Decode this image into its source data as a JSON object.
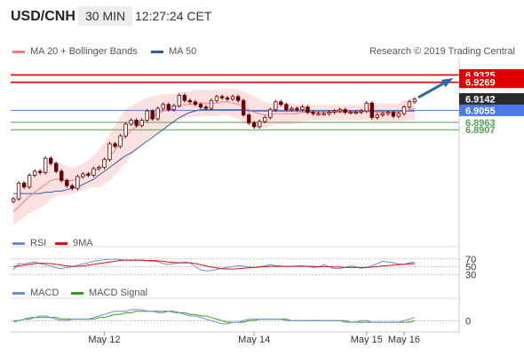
{
  "header": {
    "pair": "USD/CNH",
    "timeframe": "30 MIN",
    "time": "12:27:24 CET"
  },
  "research": "Research © 2019 Trading Central",
  "legend_main": [
    {
      "label": "MA 20 + Bollinger Bands",
      "color": "#f08080"
    },
    {
      "label": "MA 50",
      "color": "#2f5f9a"
    }
  ],
  "legend_rsi": [
    {
      "label": "RSI",
      "color": "#6a8ed8"
    },
    {
      "label": "9MA",
      "color": "#e01010"
    }
  ],
  "legend_macd": [
    {
      "label": "MACD",
      "color": "#6a8ed8"
    },
    {
      "label": "MACD Signal",
      "color": "#3a9a1a"
    }
  ],
  "colors": {
    "resistance": "#e00000",
    "pivot": "#4a7be8",
    "support": "#55a055",
    "current": "#2b2b2b",
    "bollinger_fill": "#fde0e0",
    "candle": "#6b0000",
    "arrow": "#2d67b0"
  },
  "chart_data": {
    "type": "line",
    "x_labels": [
      "May 12",
      "May 14",
      "May 15",
      "May 16"
    ],
    "price": {
      "ylim": [
        6.815,
        6.945
      ],
      "close": [
        6.838,
        6.85,
        6.847,
        6.856,
        6.859,
        6.858,
        6.869,
        6.865,
        6.859,
        6.852,
        6.848,
        6.846,
        6.855,
        6.857,
        6.856,
        6.861,
        6.862,
        6.868,
        6.88,
        6.878,
        6.886,
        6.895,
        6.898,
        6.894,
        6.898,
        6.905,
        6.899,
        6.907,
        6.91,
        6.906,
        6.909,
        6.917,
        6.913,
        6.912,
        6.91,
        6.908,
        6.907,
        6.913,
        6.916,
        6.915,
        6.914,
        6.916,
        6.913,
        6.902,
        6.896,
        6.893,
        6.897,
        6.9,
        6.906,
        6.912,
        6.91,
        6.906,
        6.907,
        6.906,
        6.908,
        6.904,
        6.903,
        6.903,
        6.903,
        6.904,
        6.905,
        6.906,
        6.904,
        6.904,
        6.904,
        6.905,
        6.911,
        6.9,
        6.902,
        6.903,
        6.904,
        6.901,
        6.903,
        6.908,
        6.912,
        6.914
      ],
      "ma20": [
        6.828,
        6.832,
        6.836,
        6.84,
        6.843,
        6.846,
        6.849,
        6.852,
        6.853,
        6.853,
        6.852,
        6.852,
        6.853,
        6.855,
        6.857,
        6.859,
        6.861,
        6.865,
        6.87,
        6.875,
        6.881,
        6.886,
        6.89,
        6.893,
        6.896,
        6.899,
        6.901,
        6.903,
        6.905,
        6.906,
        6.907,
        6.909,
        6.91,
        6.91,
        6.911,
        6.911,
        6.911,
        6.911,
        6.911,
        6.912,
        6.912,
        6.911,
        6.91,
        6.908,
        6.906,
        6.904,
        6.903,
        6.902,
        6.902,
        6.903,
        6.903,
        6.903,
        6.903,
        6.903,
        6.904,
        6.904,
        6.904,
        6.904,
        6.904,
        6.904,
        6.904,
        6.904,
        6.904,
        6.904,
        6.904,
        6.904,
        6.905,
        6.904,
        6.904,
        6.904,
        6.904,
        6.904,
        6.904,
        6.905,
        6.906,
        6.907
      ],
      "ma50": [
        6.842,
        6.842,
        6.842,
        6.842,
        6.842,
        6.842,
        6.843,
        6.843,
        6.844,
        6.844,
        6.845,
        6.846,
        6.847,
        6.849,
        6.851,
        6.853,
        6.856,
        6.859,
        6.862,
        6.865,
        6.868,
        6.871,
        6.873,
        6.876,
        6.879,
        6.882,
        6.885,
        6.888,
        6.891,
        6.894,
        6.897,
        6.9,
        6.902,
        6.904,
        6.905,
        6.906,
        6.906,
        6.906,
        6.906,
        6.906,
        6.906,
        6.906,
        6.906,
        6.906,
        6.905,
        6.905,
        6.905,
        6.905,
        6.905,
        6.905,
        6.905,
        6.905,
        6.905,
        6.905,
        6.905,
        6.905,
        6.905,
        6.905,
        6.905,
        6.905,
        6.905,
        6.905,
        6.905,
        6.905,
        6.905,
        6.905,
        6.905,
        6.905,
        6.905,
        6.905,
        6.905,
        6.905,
        6.905,
        6.905,
        6.905,
        6.905
      ],
      "bb_width": [
        0.01,
        0.011,
        0.012,
        0.013,
        0.014,
        0.015,
        0.015,
        0.014,
        0.013,
        0.012,
        0.011,
        0.01,
        0.01,
        0.01,
        0.011,
        0.012,
        0.014,
        0.016,
        0.018,
        0.019,
        0.02,
        0.02,
        0.019,
        0.018,
        0.017,
        0.016,
        0.015,
        0.014,
        0.013,
        0.012,
        0.011,
        0.011,
        0.01,
        0.01,
        0.01,
        0.01,
        0.01,
        0.01,
        0.01,
        0.01,
        0.01,
        0.011,
        0.011,
        0.012,
        0.012,
        0.012,
        0.011,
        0.01,
        0.009,
        0.008,
        0.008,
        0.008,
        0.008,
        0.007,
        0.007,
        0.006,
        0.006,
        0.006,
        0.006,
        0.006,
        0.006,
        0.006,
        0.006,
        0.006,
        0.006,
        0.006,
        0.007,
        0.007,
        0.007,
        0.007,
        0.007,
        0.007,
        0.007,
        0.008,
        0.008,
        0.009
      ]
    },
    "levels": [
      {
        "value": 6.9325,
        "label": "6.9325",
        "type": "resistance"
      },
      {
        "value": 6.9269,
        "label": "6.9269",
        "type": "resistance"
      },
      {
        "value": 6.9142,
        "label": "6.9142",
        "type": "current"
      },
      {
        "value": 6.9055,
        "label": "6.9055",
        "type": "pivot"
      },
      {
        "value": 6.8963,
        "label": "6.8963",
        "type": "support"
      },
      {
        "value": 6.8907,
        "label": "6.8907",
        "type": "support"
      }
    ],
    "rsi": {
      "ylim": [
        10,
        90
      ],
      "ticks": [
        30,
        50,
        70
      ],
      "rsi": [
        42,
        58,
        57,
        60,
        62,
        58,
        55,
        52,
        47,
        45,
        48,
        50,
        54,
        57,
        60,
        64,
        66,
        68,
        69,
        70,
        68,
        67,
        66,
        68,
        66,
        65,
        64,
        63,
        58,
        56,
        58,
        60,
        62,
        60,
        50,
        42,
        39,
        40,
        43,
        46,
        48,
        50,
        53,
        51,
        49,
        48,
        50,
        52,
        55,
        53,
        52,
        50,
        51,
        52,
        53,
        50,
        48,
        49,
        55,
        50,
        45,
        46,
        48,
        52,
        50,
        46,
        48,
        52,
        58,
        64,
        62,
        60,
        57,
        56,
        60,
        62
      ],
      "ma9": [
        50,
        52,
        54,
        56,
        58,
        59,
        59,
        58,
        56,
        54,
        52,
        51,
        51,
        52,
        54,
        56,
        58,
        60,
        62,
        64,
        66,
        67,
        67,
        67,
        67,
        66,
        66,
        65,
        64,
        62,
        61,
        60,
        60,
        60,
        58,
        55,
        52,
        49,
        47,
        45,
        44,
        44,
        45,
        46,
        47,
        48,
        49,
        50,
        51,
        51,
        51,
        51,
        51,
        51,
        51,
        51,
        51,
        50,
        50,
        50,
        49,
        49,
        48,
        48,
        48,
        48,
        48,
        49,
        50,
        52,
        53,
        54,
        55,
        56,
        57,
        58
      ]
    },
    "macd": {
      "ylim": [
        -0.006,
        0.012
      ],
      "ticks": [
        0
      ],
      "macd": [
        -0.001,
        0.0,
        0.001,
        0.002,
        0.002,
        0.003,
        0.003,
        0.002,
        0.001,
        0.0,
        0.0,
        0.001,
        0.001,
        0.001,
        0.001,
        0.002,
        0.003,
        0.004,
        0.005,
        0.006,
        0.006,
        0.006,
        0.007,
        0.007,
        0.007,
        0.006,
        0.006,
        0.005,
        0.005,
        0.006,
        0.005,
        0.005,
        0.004,
        0.003,
        0.003,
        0.002,
        0.001,
        0.0,
        -0.001,
        -0.002,
        -0.002,
        -0.001,
        -0.001,
        0.0,
        0.001,
        0.001,
        0.001,
        0.001,
        0.001,
        0.001,
        0.001,
        0.0,
        0.0,
        0.0,
        0.0,
        0.0,
        0.0,
        0.0,
        0.0,
        0.0,
        0.0,
        0.0,
        -0.001,
        -0.001,
        -0.001,
        0.0,
        0.0,
        -0.001,
        -0.001,
        -0.001,
        -0.001,
        -0.001,
        -0.001,
        0.0,
        0.001,
        0.002
      ],
      "signal": [
        0.0,
        0.0,
        0.001,
        0.001,
        0.002,
        0.002,
        0.002,
        0.002,
        0.002,
        0.001,
        0.001,
        0.001,
        0.001,
        0.001,
        0.001,
        0.001,
        0.002,
        0.002,
        0.003,
        0.004,
        0.004,
        0.005,
        0.005,
        0.006,
        0.006,
        0.006,
        0.006,
        0.006,
        0.006,
        0.006,
        0.006,
        0.005,
        0.005,
        0.004,
        0.004,
        0.003,
        0.003,
        0.002,
        0.001,
        0.0,
        -0.001,
        -0.001,
        -0.001,
        -0.001,
        0.0,
        0.0,
        0.001,
        0.001,
        0.001,
        0.001,
        0.001,
        0.001,
        0.0,
        0.0,
        0.0,
        0.0,
        0.0,
        0.0,
        0.0,
        0.0,
        0.0,
        0.0,
        0.0,
        -0.001,
        -0.001,
        -0.001,
        -0.001,
        -0.001,
        -0.001,
        -0.001,
        -0.001,
        -0.001,
        -0.001,
        -0.001,
        -0.001,
        0.0
      ]
    }
  }
}
